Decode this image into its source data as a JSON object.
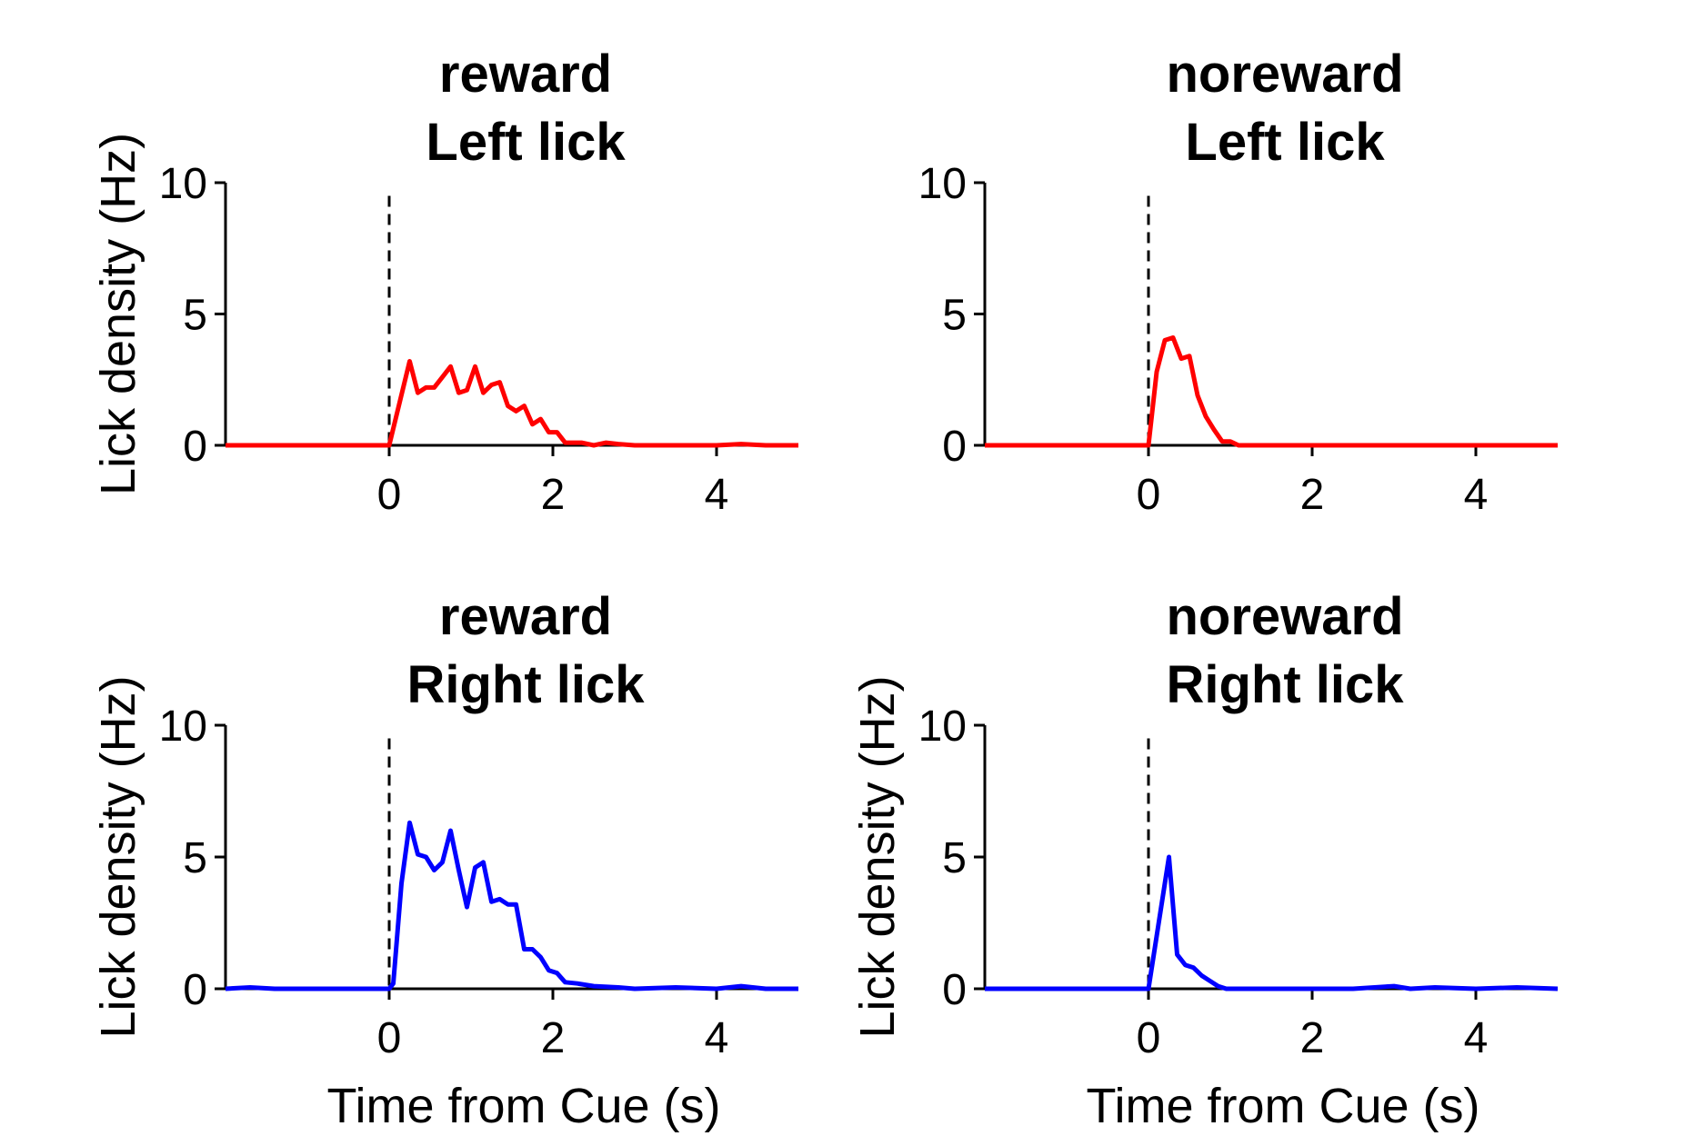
{
  "chart_data": [
    {
      "type": "line",
      "title_lines": [
        "reward",
        "Left lick"
      ],
      "xlabel": "",
      "ylabel": "Lick density (Hz)",
      "xlim": [
        -2,
        5
      ],
      "ylim": [
        0,
        10
      ],
      "xticks": [
        0,
        2,
        4
      ],
      "yticks": [
        0,
        5,
        10
      ],
      "grid": false,
      "cue_time": 0,
      "line_color": "#ff0000",
      "x": [
        -2,
        0,
        0.25,
        0.35,
        0.45,
        0.55,
        0.65,
        0.75,
        0.85,
        0.95,
        1.05,
        1.15,
        1.25,
        1.35,
        1.45,
        1.55,
        1.65,
        1.75,
        1.85,
        1.95,
        2.05,
        2.15,
        2.25,
        2.35,
        2.5,
        2.65,
        2.8,
        3.0,
        3.5,
        4.0,
        4.3,
        4.6,
        5.0
      ],
      "y": [
        0,
        0,
        3.2,
        2.0,
        2.2,
        2.2,
        2.6,
        3.0,
        2.0,
        2.1,
        3.0,
        2.0,
        2.3,
        2.4,
        1.5,
        1.3,
        1.5,
        0.8,
        1.0,
        0.5,
        0.5,
        0.1,
        0.1,
        0.1,
        0.0,
        0.1,
        0.05,
        0.0,
        0.0,
        0.0,
        0.05,
        0.0,
        0.0
      ]
    },
    {
      "type": "line",
      "title_lines": [
        "noreward",
        "Left lick"
      ],
      "xlabel": "",
      "ylabel": "",
      "xlim": [
        -2,
        5
      ],
      "ylim": [
        0,
        10
      ],
      "xticks": [
        0,
        2,
        4
      ],
      "yticks": [
        0,
        5,
        10
      ],
      "grid": false,
      "cue_time": 0,
      "line_color": "#ff0000",
      "x": [
        -2,
        0,
        0.1,
        0.2,
        0.3,
        0.4,
        0.5,
        0.6,
        0.7,
        0.8,
        0.9,
        1.0,
        1.1,
        1.2,
        1.5,
        2.0,
        3.0,
        4.0,
        5.0
      ],
      "y": [
        0,
        0,
        2.8,
        4.0,
        4.1,
        3.3,
        3.4,
        1.9,
        1.1,
        0.6,
        0.15,
        0.15,
        0.0,
        0.0,
        0.0,
        0.0,
        0.0,
        0.0,
        0.0
      ]
    },
    {
      "type": "line",
      "title_lines": [
        "reward",
        "Right lick"
      ],
      "xlabel": "Time from Cue (s)",
      "ylabel": "Lick density (Hz)",
      "xlim": [
        -2,
        5
      ],
      "ylim": [
        0,
        10
      ],
      "xticks": [
        0,
        2,
        4
      ],
      "yticks": [
        0,
        5,
        10
      ],
      "grid": false,
      "cue_time": 0,
      "line_color": "#0000ff",
      "x": [
        -2,
        -1.7,
        -1.4,
        0,
        0.05,
        0.15,
        0.25,
        0.35,
        0.45,
        0.55,
        0.65,
        0.75,
        0.85,
        0.95,
        1.05,
        1.15,
        1.25,
        1.35,
        1.45,
        1.55,
        1.65,
        1.75,
        1.85,
        1.95,
        2.05,
        2.15,
        2.3,
        2.5,
        2.8,
        3.0,
        3.5,
        4.0,
        4.3,
        4.6,
        5.0
      ],
      "y": [
        0,
        0.05,
        0,
        0,
        0.2,
        4.0,
        6.3,
        5.1,
        5.0,
        4.5,
        4.8,
        6.0,
        4.5,
        3.1,
        4.6,
        4.8,
        3.3,
        3.4,
        3.2,
        3.2,
        1.5,
        1.5,
        1.2,
        0.7,
        0.6,
        0.25,
        0.2,
        0.1,
        0.05,
        0.0,
        0.05,
        0.0,
        0.1,
        0.0,
        0.0
      ]
    },
    {
      "type": "line",
      "title_lines": [
        "noreward",
        "Right lick"
      ],
      "xlabel": "Time from Cue (s)",
      "ylabel": "Lick density (Hz)",
      "xlim": [
        -2,
        5
      ],
      "ylim": [
        0,
        10
      ],
      "xticks": [
        0,
        2,
        4
      ],
      "yticks": [
        0,
        5,
        10
      ],
      "grid": false,
      "cue_time": 0,
      "line_color": "#0000ff",
      "x": [
        -2,
        0,
        0.1,
        0.25,
        0.35,
        0.45,
        0.55,
        0.65,
        0.75,
        0.85,
        0.95,
        1.1,
        1.5,
        2.0,
        2.5,
        3.0,
        3.2,
        3.5,
        4.0,
        4.5,
        5.0
      ],
      "y": [
        0,
        0,
        2.0,
        5.0,
        1.3,
        0.9,
        0.8,
        0.5,
        0.3,
        0.1,
        0.0,
        0.0,
        0.0,
        0.0,
        0.0,
        0.1,
        0.0,
        0.05,
        0.0,
        0.05,
        0.0
      ]
    }
  ]
}
